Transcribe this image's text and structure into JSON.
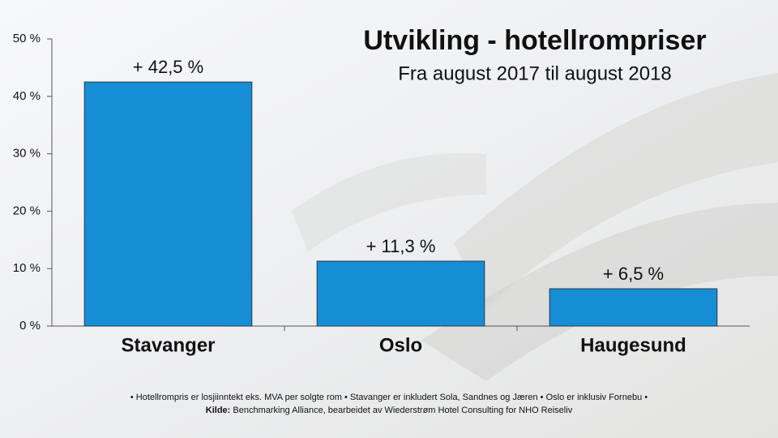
{
  "chart_data": {
    "type": "bar",
    "title": "Utvikling - hotellrompriser",
    "subtitle": "Fra august 2017 til august 2018",
    "categories": [
      "Stavanger",
      "Oslo",
      "Haugesund"
    ],
    "values": [
      42.5,
      11.3,
      6.5
    ],
    "value_labels": [
      "+ 42,5 %",
      "+ 11,3 %",
      "+ 6,5 %"
    ],
    "color": "#168ed6",
    "ylim": [
      0,
      50
    ],
    "yticks": [
      {
        "value": 0,
        "label": "0 %"
      },
      {
        "value": 10,
        "label": "10 %"
      },
      {
        "value": 20,
        "label": "20 %"
      },
      {
        "value": 30,
        "label": "30 %"
      },
      {
        "value": 40,
        "label": "40 %"
      },
      {
        "value": 50,
        "label": "50 %"
      }
    ],
    "grid": false,
    "footnote": "• Hotellrompris er losjiinntekt eks. MVA per solgte rom • Stavanger er inkludert Sola, Sandnes og Jæren • Oslo er inklusiv Fornebu •",
    "source_label": "Kilde:",
    "source": "Benchmarking Alliance, bearbeidet av Wiederstrøm Hotel Consulting for NHO Reiseliv"
  }
}
